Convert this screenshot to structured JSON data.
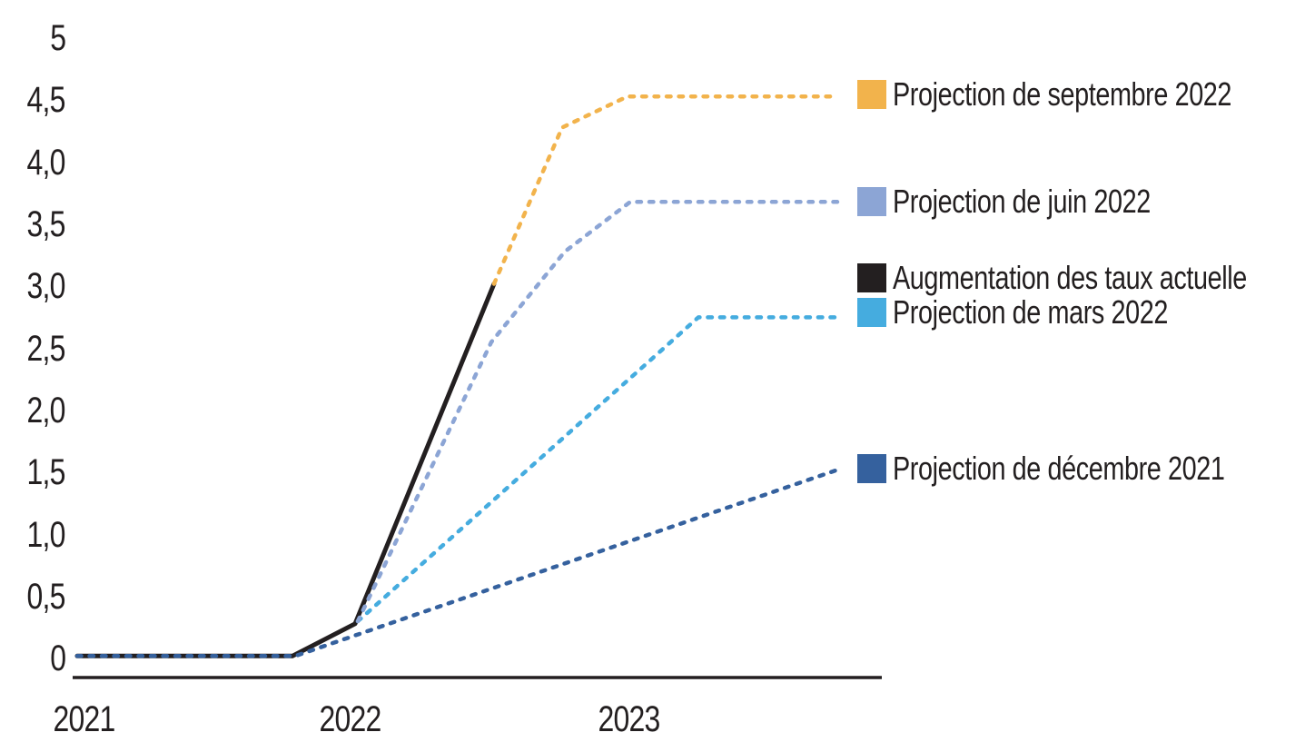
{
  "colors": {
    "text": "#231f20",
    "axis": "#231f20",
    "background": "#ffffff"
  },
  "legend": {
    "position": "right",
    "entries": [
      {
        "key": "septembre",
        "label": "Projection de septembre 2022",
        "color": "#f2b34c"
      },
      {
        "key": "juin",
        "label": "Projection de juin 2022",
        "color": "#8ca5d5"
      },
      {
        "key": "actuelle",
        "label": "Augmentation des taux actuelle",
        "color": "#231f20"
      },
      {
        "key": "mars",
        "label": "Projection de mars 2022",
        "color": "#45acdf"
      },
      {
        "key": "decembre",
        "label": "Projection de décembre 2021",
        "color": "#35619e"
      }
    ]
  },
  "chart_data": {
    "type": "line",
    "title": "",
    "xlabel": "",
    "ylabel": "",
    "grid": false,
    "xlim": [
      2021.0,
      2023.95
    ],
    "ylim": [
      0,
      5
    ],
    "y_axis": {
      "ticks": [
        {
          "label": "5",
          "value": 5
        },
        {
          "label": "4,5",
          "value": 4.5
        },
        {
          "label": "4,0",
          "value": 4.0
        },
        {
          "label": "3,5",
          "value": 3.5
        },
        {
          "label": "3,0",
          "value": 3.0
        },
        {
          "label": "2,5",
          "value": 2.5
        },
        {
          "label": "2,0",
          "value": 2.0
        },
        {
          "label": "1,5",
          "value": 1.5
        },
        {
          "label": "1,0",
          "value": 1.0
        },
        {
          "label": "0,5",
          "value": 0.5
        },
        {
          "label": "0",
          "value": 0
        }
      ]
    },
    "x_axis": {
      "ticks": [
        {
          "label": "2021",
          "value": 2021
        },
        {
          "label": "2022",
          "value": 2022
        },
        {
          "label": "2023",
          "value": 2023
        }
      ]
    },
    "series": [
      {
        "key": "actuelle",
        "name": "Augmentation des taux actuelle",
        "color": "#231f20",
        "line_style": "solid",
        "points": [
          [
            2021.0,
            0.02
          ],
          [
            2021.79,
            0.02
          ],
          [
            2022.02,
            0.28
          ],
          [
            2022.53,
            3.02
          ]
        ]
      },
      {
        "key": "decembre",
        "name": "Projection de décembre 2021",
        "color": "#35619e",
        "line_style": "dashed",
        "points": [
          [
            2021.0,
            0.02
          ],
          [
            2021.8,
            0.02
          ],
          [
            2023.79,
            1.52
          ]
        ]
      },
      {
        "key": "mars",
        "name": "Projection de mars 2022",
        "color": "#45acdf",
        "line_style": "dashed",
        "points": [
          [
            2022.03,
            0.3
          ],
          [
            2023.28,
            2.75
          ],
          [
            2023.79,
            2.75
          ]
        ]
      },
      {
        "key": "juin",
        "name": "Projection de juin 2022",
        "color": "#8ca5d5",
        "line_style": "dashed",
        "points": [
          [
            2022.03,
            0.3
          ],
          [
            2022.52,
            2.55
          ],
          [
            2022.79,
            3.28
          ],
          [
            2023.03,
            3.68
          ],
          [
            2023.79,
            3.68
          ]
        ]
      },
      {
        "key": "septembre",
        "name": "Projection de septembre 2022",
        "color": "#f2b34c",
        "line_style": "dashed",
        "points": [
          [
            2022.53,
            3.02
          ],
          [
            2022.78,
            4.28
          ],
          [
            2023.02,
            4.53
          ],
          [
            2023.79,
            4.53
          ]
        ]
      }
    ]
  }
}
